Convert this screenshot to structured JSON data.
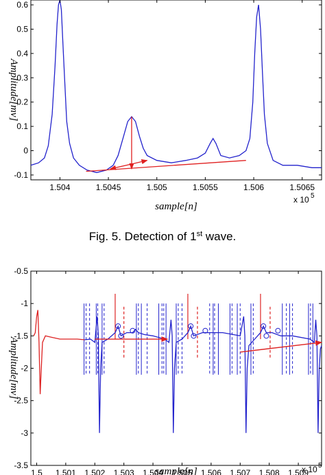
{
  "chart_data": [
    {
      "type": "line",
      "xlabel": "sample[n]",
      "ylabel": "Amplitude[mv]",
      "x_multiplier": "x 10",
      "x_multiplier_exp": "5",
      "xlim": [
        150370,
        150670
      ],
      "ylim": [
        -0.12,
        0.62
      ],
      "xticks": [
        150400,
        150450,
        150500,
        150550,
        150600,
        150650
      ],
      "xtick_labels": [
        "1.504",
        "1.5045",
        "1.505",
        "1.5055",
        "1.506",
        "1.5065"
      ],
      "yticks": [
        -0.1,
        0,
        0.1,
        0.2,
        0.3,
        0.4,
        0.5,
        0.6
      ],
      "ytick_labels": [
        "-0.1",
        "0",
        "0.1",
        "0.2",
        "0.3",
        "0.4",
        "0.5",
        "0.6"
      ],
      "series": [
        {
          "color": "#2222cc",
          "points": [
            [
              150370,
              -0.06
            ],
            [
              150378,
              -0.05
            ],
            [
              150384,
              -0.03
            ],
            [
              150388,
              0.02
            ],
            [
              150392,
              0.15
            ],
            [
              150395,
              0.35
            ],
            [
              150397,
              0.52
            ],
            [
              150398.5,
              0.6
            ],
            [
              150400,
              0.62
            ],
            [
              150401.5,
              0.58
            ],
            [
              150403,
              0.45
            ],
            [
              150405,
              0.28
            ],
            [
              150407,
              0.12
            ],
            [
              150410,
              0.03
            ],
            [
              150414,
              -0.03
            ],
            [
              150420,
              -0.06
            ],
            [
              150428,
              -0.08
            ],
            [
              150438,
              -0.09
            ],
            [
              150448,
              -0.08
            ],
            [
              150455,
              -0.06
            ],
            [
              150460,
              -0.02
            ],
            [
              150465,
              0.05
            ],
            [
              150470,
              0.12
            ],
            [
              150474,
              0.14
            ],
            [
              150478,
              0.12
            ],
            [
              150482,
              0.06
            ],
            [
              150486,
              0.01
            ],
            [
              150490,
              -0.02
            ],
            [
              150500,
              -0.04
            ],
            [
              150515,
              -0.05
            ],
            [
              150530,
              -0.04
            ],
            [
              150542,
              -0.03
            ],
            [
              150550,
              -0.01
            ],
            [
              150555,
              0.03
            ],
            [
              150558,
              0.05
            ],
            [
              150561,
              0.03
            ],
            [
              150566,
              -0.02
            ],
            [
              150575,
              -0.03
            ],
            [
              150585,
              -0.02
            ],
            [
              150592,
              0.0
            ],
            [
              150596,
              0.05
            ],
            [
              150599,
              0.2
            ],
            [
              150601,
              0.4
            ],
            [
              150603,
              0.55
            ],
            [
              150605,
              0.6
            ],
            [
              150607,
              0.5
            ],
            [
              150609,
              0.32
            ],
            [
              150611,
              0.15
            ],
            [
              150614,
              0.03
            ],
            [
              150620,
              -0.04
            ],
            [
              150630,
              -0.06
            ],
            [
              150645,
              -0.06
            ],
            [
              150660,
              -0.07
            ],
            [
              150670,
              -0.07
            ]
          ]
        }
      ],
      "annotations": {
        "color": "#e02020",
        "arrows": [
          {
            "from": [
              150474,
              0.14
            ],
            "to": [
              150474,
              -0.075
            ]
          },
          {
            "from": [
              150474,
              -0.055
            ],
            "to": [
              150452,
              -0.075
            ]
          },
          {
            "from": [
              150474,
              -0.055
            ],
            "to": [
              150490,
              -0.04
            ]
          }
        ],
        "lines": [
          {
            "from": [
              150427,
              -0.085
            ],
            "to": [
              150592,
              -0.04
            ]
          }
        ]
      }
    },
    {
      "type": "line",
      "xlabel": "sample[n]",
      "ylabel": "Amplitude[mv]",
      "x_multiplier": "x 10",
      "x_multiplier_exp": "5",
      "xlim": [
        149980,
        150980
      ],
      "ylim": [
        -3.5,
        -0.5
      ],
      "xticks": [
        150000,
        150100,
        150200,
        150300,
        150400,
        150500,
        150600,
        150700,
        150800,
        150900
      ],
      "xtick_labels": [
        "1.5",
        "1.501",
        "1.502",
        "1.503",
        "1.504",
        "1.505",
        "1.506",
        "1.507",
        "1.508",
        "1.509"
      ],
      "yticks": [
        -3.5,
        -3,
        -2.5,
        -2,
        -1.5,
        -1,
        -0.5
      ],
      "ytick_labels": [
        "-3.5",
        "-3",
        "-2.5",
        "-2",
        "-1.5",
        "-1",
        "-0.5"
      ],
      "series": [
        {
          "color": "#dd2222",
          "points": [
            [
              149990,
              -1.5
            ],
            [
              149995,
              -1.45
            ],
            [
              150000,
              -1.2
            ],
            [
              150004,
              -1.1
            ],
            [
              150008,
              -1.6
            ],
            [
              150012,
              -2.4
            ],
            [
              150015,
              -2.1
            ],
            [
              150020,
              -1.6
            ],
            [
              150030,
              -1.5
            ],
            [
              150050,
              -1.52
            ],
            [
              150080,
              -1.55
            ],
            [
              150110,
              -1.55
            ],
            [
              150140,
              -1.55
            ],
            [
              150165,
              -1.56
            ]
          ]
        },
        {
          "color": "#2222cc",
          "points": [
            [
              150165,
              -1.56
            ],
            [
              150185,
              -1.55
            ],
            [
              150200,
              -1.6
            ],
            [
              150208,
              -1.2
            ],
            [
              150212,
              -1.5
            ],
            [
              150216,
              -3.0
            ],
            [
              150220,
              -2.0
            ],
            [
              150225,
              -1.6
            ],
            [
              150245,
              -1.55
            ],
            [
              150270,
              -1.45
            ],
            [
              150280,
              -1.35
            ],
            [
              150290,
              -1.5
            ],
            [
              150310,
              -1.45
            ],
            [
              150330,
              -1.45
            ],
            [
              150340,
              -1.4
            ],
            [
              150350,
              -1.45
            ],
            [
              150370,
              -1.48
            ],
            [
              150400,
              -1.5
            ],
            [
              150440,
              -1.55
            ],
            [
              150455,
              -1.6
            ],
            [
              150462,
              -1.25
            ],
            [
              150466,
              -1.5
            ],
            [
              150470,
              -3.0
            ],
            [
              150474,
              -2.0
            ],
            [
              150480,
              -1.6
            ],
            [
              150500,
              -1.55
            ],
            [
              150520,
              -1.45
            ],
            [
              150530,
              -1.35
            ],
            [
              150540,
              -1.5
            ],
            [
              150570,
              -1.45
            ],
            [
              150600,
              -1.45
            ],
            [
              150640,
              -1.45
            ],
            [
              150700,
              -1.5
            ],
            [
              150712,
              -1.2
            ],
            [
              150716,
              -1.5
            ],
            [
              150720,
              -3.0
            ],
            [
              150724,
              -2.0
            ],
            [
              150730,
              -1.65
            ],
            [
              150750,
              -1.55
            ],
            [
              150770,
              -1.45
            ],
            [
              150780,
              -1.35
            ],
            [
              150790,
              -1.45
            ],
            [
              150810,
              -1.45
            ],
            [
              150840,
              -1.5
            ],
            [
              150880,
              -1.5
            ],
            [
              150940,
              -1.55
            ],
            [
              150955,
              -1.6
            ],
            [
              150960,
              -1.25
            ],
            [
              150964,
              -1.5
            ],
            [
              150968,
              -3.0
            ],
            [
              150972,
              -2.0
            ],
            [
              150976,
              -1.7
            ],
            [
              150980,
              -1.65
            ]
          ]
        }
      ],
      "markers": {
        "color": "#2222cc",
        "circles": [
          [
            150280,
            -1.35
          ],
          [
            150290,
            -1.5
          ],
          [
            150330,
            -1.42
          ],
          [
            150530,
            -1.35
          ],
          [
            150540,
            -1.5
          ],
          [
            150580,
            -1.42
          ],
          [
            150780,
            -1.35
          ],
          [
            150790,
            -1.5
          ],
          [
            150830,
            -1.42
          ]
        ]
      },
      "vertical_lines": {
        "blue_solid": [
          150163,
          150205,
          150225,
          150343,
          150360,
          150420,
          150445,
          150480,
          150607,
          150625,
          150665,
          150690,
          150737,
          150845,
          150870,
          150935,
          150950
        ],
        "blue_dashed": [
          150170,
          150182,
          150210,
          150232,
          150350,
          150380,
          150431,
          150437,
          150487,
          150500,
          150595,
          150612,
          150672,
          150700,
          150745,
          150859,
          150880,
          150942
        ],
        "red_solid": [
          150270,
          150520,
          150770
        ],
        "red_dashed": [
          150300,
          150553,
          150803
        ]
      },
      "annotations": {
        "color": "#dd2222",
        "lines": [
          {
            "from": [
              150200,
              -1.55
            ],
            "to": [
              150450,
              -1.55
            ]
          },
          {
            "from": [
              150700,
              -1.75
            ],
            "to": [
              150980,
              -1.6
            ]
          }
        ]
      }
    }
  ],
  "captions": {
    "fig5_prefix": "Fig. 5. Detection of 1",
    "fig5_sup": "st",
    "fig5_suffix": " wave."
  }
}
